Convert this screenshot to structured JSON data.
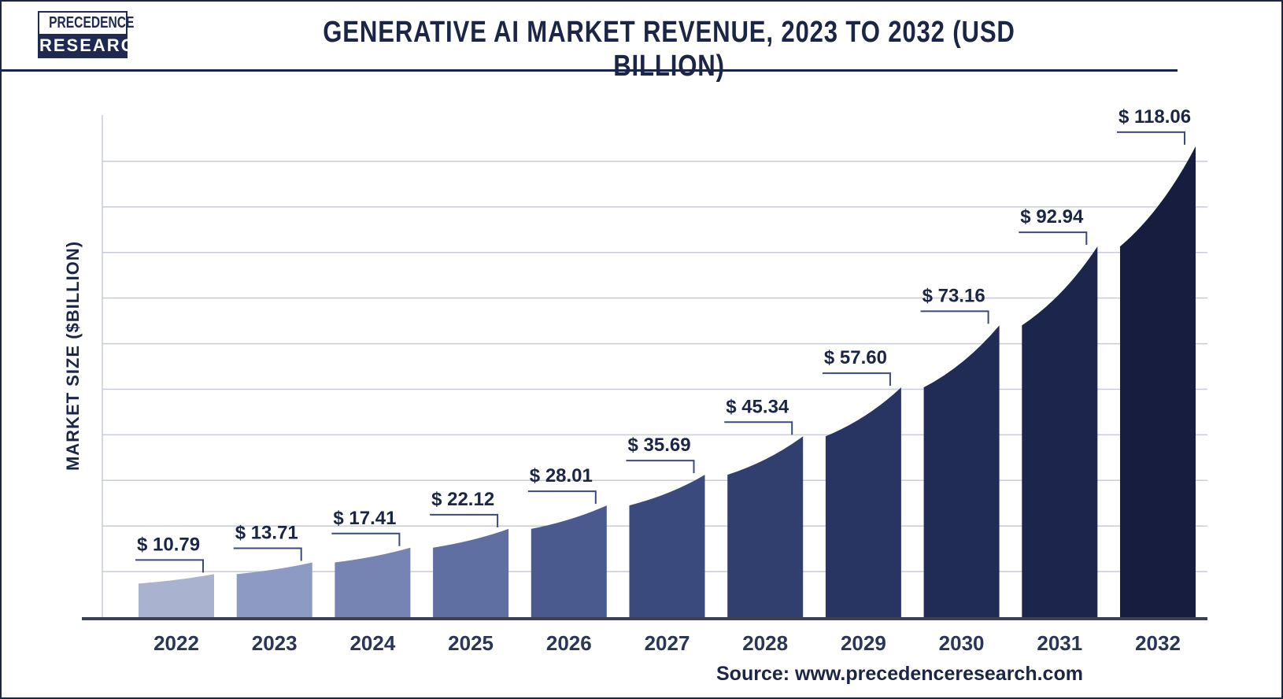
{
  "logo": {
    "line1": "PRECEDENCE",
    "line2": "RESEARCH"
  },
  "title": "GENERATIVE AI MARKET REVENUE, 2023 TO 2032 (USD BILLION)",
  "source": "Source: www.precedenceresearch.com",
  "colors": {
    "frame": "#1b2546",
    "grid": "#c9ccd6",
    "baseline": "#3a3f52",
    "bars": [
      "#a9b3d0",
      "#8d9bc4",
      "#7584b3",
      "#5f6fa1",
      "#4a5a8f",
      "#3b4a7d",
      "#303f6e",
      "#283563",
      "#212c56",
      "#1c254b",
      "#161d3e"
    ]
  },
  "chart_data": {
    "type": "bar",
    "title": "GENERATIVE AI MARKET REVENUE, 2023 TO 2032 (USD BILLION)",
    "xlabel": "",
    "ylabel": "MARKET SIZE ($BILLION)",
    "categories": [
      "2022",
      "2023",
      "2024",
      "2025",
      "2026",
      "2027",
      "2028",
      "2029",
      "2030",
      "2031",
      "2032"
    ],
    "values": [
      10.79,
      13.71,
      17.41,
      22.12,
      28.01,
      35.69,
      45.34,
      57.6,
      73.16,
      92.94,
      118.06
    ],
    "data_labels": [
      "$ 10.79",
      "$ 13.71",
      "$ 17.41",
      "$ 22.12",
      "$ 28.01",
      "$ 35.69",
      "$ 45.34",
      "$ 57.60",
      "$ 73.16",
      "$ 92.94",
      "$ 118.06"
    ],
    "ylim": [
      0,
      120
    ],
    "grid": true,
    "legend": "none"
  }
}
